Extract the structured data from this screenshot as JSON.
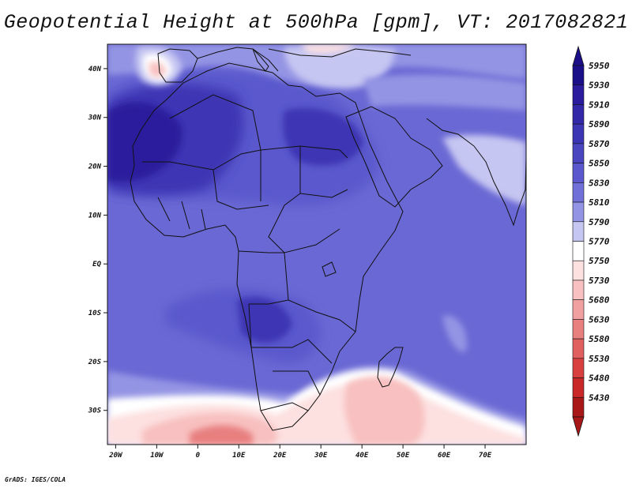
{
  "title": "Geopotential Height at 500hPa [gpm], VT: 2017082821",
  "credit": "GrADS: IGES/COLA",
  "axes": {
    "x_ticks": [
      {
        "value": -20,
        "label": "20W"
      },
      {
        "value": -10,
        "label": "10W"
      },
      {
        "value": 0,
        "label": "0"
      },
      {
        "value": 10,
        "label": "10E"
      },
      {
        "value": 20,
        "label": "20E"
      },
      {
        "value": 30,
        "label": "30E"
      },
      {
        "value": 40,
        "label": "40E"
      },
      {
        "value": 50,
        "label": "50E"
      },
      {
        "value": 60,
        "label": "60E"
      },
      {
        "value": 70,
        "label": "70E"
      }
    ],
    "y_ticks": [
      {
        "value": 40,
        "label": "40N"
      },
      {
        "value": 30,
        "label": "30N"
      },
      {
        "value": 20,
        "label": "20N"
      },
      {
        "value": 10,
        "label": "10N"
      },
      {
        "value": 0,
        "label": "EQ"
      },
      {
        "value": -10,
        "label": "10S"
      },
      {
        "value": -20,
        "label": "20S"
      },
      {
        "value": -30,
        "label": "30S"
      }
    ],
    "lon_range": [
      -22,
      80
    ],
    "lat_range": [
      -37,
      45
    ]
  },
  "colorbar": {
    "levels": [
      {
        "label": "5950",
        "color": "#1a0f88"
      },
      {
        "label": "5930",
        "color": "#2a1c9c"
      },
      {
        "label": "5910",
        "color": "#3328a8"
      },
      {
        "label": "5890",
        "color": "#3d36b4"
      },
      {
        "label": "5870",
        "color": "#4a46c0"
      },
      {
        "label": "5850",
        "color": "#5a58cc"
      },
      {
        "label": "5830",
        "color": "#7070d8"
      },
      {
        "label": "5810",
        "color": "#9494e4"
      },
      {
        "label": "5790",
        "color": "#c6c6f2"
      },
      {
        "label": "5770",
        "color": "#ffffff"
      },
      {
        "label": "5750",
        "color": "#fde0e0"
      },
      {
        "label": "5730",
        "color": "#f8c0c0"
      },
      {
        "label": "5680",
        "color": "#f0a0a0"
      },
      {
        "label": "5630",
        "color": "#e88080"
      },
      {
        "label": "5580",
        "color": "#e06060"
      },
      {
        "label": "5530",
        "color": "#d84040"
      },
      {
        "label": "5480",
        "color": "#c82828"
      },
      {
        "label": "5430",
        "color": "#a81818"
      }
    ],
    "top_arrow_color": "#1a0f88",
    "bottom_arrow_color": "#a81818"
  },
  "field_colors": {
    "background": "#6a68d4",
    "very_high": "#2a1c9c",
    "high": "#3d36b4",
    "mid": "#5a58cc",
    "low": "#9494e4",
    "lighter": "#c6c6f2",
    "white": "#ffffff",
    "pink": "#fde0e0",
    "rose": "#f8c0c0",
    "red": "#e88080",
    "dark_red": "#d84040"
  }
}
